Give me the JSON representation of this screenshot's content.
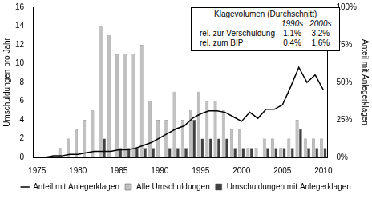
{
  "chart_data": {
    "type": "bar",
    "x": [
      1975,
      1976,
      1977,
      1978,
      1979,
      1980,
      1981,
      1982,
      1983,
      1984,
      1985,
      1986,
      1987,
      1988,
      1989,
      1990,
      1991,
      1992,
      1993,
      1994,
      1995,
      1996,
      1997,
      1998,
      1999,
      2000,
      2001,
      2002,
      2003,
      2004,
      2005,
      2006,
      2007,
      2008,
      2009,
      2010
    ],
    "series": [
      {
        "name": "Alle Umschuldungen",
        "type": "bar",
        "color": "#c0c0c0",
        "values": [
          0,
          0,
          0,
          1,
          2,
          3,
          4,
          5,
          14,
          13,
          11,
          11,
          11,
          12,
          6,
          4,
          4,
          7,
          4,
          5,
          7,
          6,
          6,
          5,
          3,
          3,
          1,
          1,
          2,
          2,
          1,
          2,
          4,
          2,
          2,
          2
        ]
      },
      {
        "name": "Umschuldungen mit Anlegerklagen",
        "type": "bar",
        "color": "#404040",
        "values": [
          0,
          0,
          0,
          0,
          0,
          0,
          0,
          0,
          2,
          0,
          1,
          1,
          1,
          1,
          1,
          0,
          1,
          1,
          1,
          4,
          2,
          2,
          2,
          2,
          1,
          1,
          1,
          0,
          1,
          1,
          1,
          1,
          3,
          1,
          1,
          1
        ]
      },
      {
        "name": "Anteil mit Anlegerklagen",
        "type": "line",
        "color": "#000000",
        "axis": "y2",
        "values": [
          0,
          0,
          1,
          1,
          2,
          2,
          3,
          4,
          4,
          4,
          5,
          5,
          6,
          8,
          10,
          13,
          16,
          19,
          21,
          26,
          29,
          31,
          31,
          30,
          27,
          24,
          30,
          26,
          32,
          32,
          35,
          47,
          60,
          50,
          55,
          45
        ]
      }
    ],
    "xlim": [
      1974.5,
      2010.5
    ],
    "xticks": [
      1975,
      1980,
      1985,
      1990,
      1995,
      2000,
      2005,
      2010
    ],
    "ylim": [
      0,
      16
    ],
    "yticks": [
      0,
      2,
      4,
      6,
      8,
      10,
      12,
      14,
      16
    ],
    "y2lim": [
      0,
      100
    ],
    "y2ticks": [
      {
        "value": 0,
        "label": "0%"
      },
      {
        "value": 25,
        "label": "25%"
      },
      {
        "value": 50,
        "label": "50%"
      },
      {
        "value": 75,
        "label": "75%"
      },
      {
        "value": 100,
        "label": "100%"
      }
    ],
    "y_label": "Umschuldungen pro Jahr",
    "y2_label": "Anteil mit Anlegerklagen",
    "grid": false,
    "legend": "bottom",
    "inset": {
      "title": "Klagevolumen (Durchschnitt)",
      "columns": [
        "1990s",
        "2000s"
      ],
      "rows": [
        {
          "label": "rel. zur Verschuldung",
          "cells": [
            "1.1%",
            "3.2%"
          ]
        },
        {
          "label": "rel. zum BIP",
          "cells": [
            "0.4%",
            "1.6%"
          ]
        }
      ]
    }
  }
}
